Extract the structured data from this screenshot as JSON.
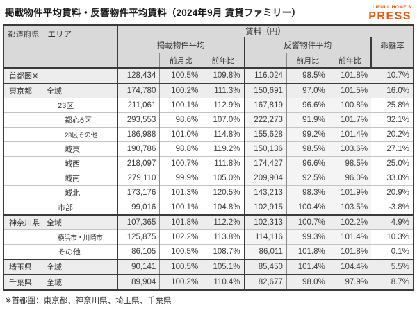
{
  "page": {
    "title": "掲載物件平均賃料・反響物件平均賃料（2024年9月 賃貸ファミリー）",
    "footnote": "※首都圏：東京都、神奈川県、埼玉県、千葉県"
  },
  "logo": {
    "brand": "LIFULL HOME'S",
    "name": "PRESS",
    "color": "#E8590C"
  },
  "table": {
    "header": {
      "area_label": "都道府県　エリア",
      "rent_label": "賃料（円）",
      "listed_avg": "掲載物件平均",
      "response_avg": "反響物件平均",
      "deviation": "乖離率",
      "mom": "前月比",
      "yoy": "前年比"
    },
    "rows": [
      {
        "pref": "首都圏※",
        "area": "",
        "indent": 0,
        "summary": true,
        "group_start": true,
        "values": [
          "128,434",
          "100.5%",
          "109.8%",
          "116,024",
          "98.5%",
          "101.8%",
          "10.7%"
        ]
      },
      {
        "pref": "東京都",
        "area": "全域",
        "indent": 1,
        "summary": true,
        "group_start": true,
        "values": [
          "174,780",
          "100.2%",
          "111.3%",
          "150,691",
          "97.0%",
          "101.5%",
          "16.0%"
        ]
      },
      {
        "pref": "",
        "area": "23区",
        "indent": 2,
        "values": [
          "211,061",
          "100.1%",
          "112.9%",
          "167,819",
          "96.6%",
          "100.8%",
          "25.8%"
        ]
      },
      {
        "pref": "",
        "area": "都心6区",
        "indent": 3,
        "values": [
          "293,553",
          "98.6%",
          "107.0%",
          "222,273",
          "91.9%",
          "101.7%",
          "32.1%"
        ]
      },
      {
        "pref": "",
        "area": "23区その他",
        "indent": 3,
        "small": true,
        "values": [
          "186,988",
          "101.0%",
          "114.8%",
          "155,628",
          "99.2%",
          "101.4%",
          "20.2%"
        ]
      },
      {
        "pref": "",
        "area": "城東",
        "indent": 3,
        "values": [
          "190,786",
          "98.8%",
          "119.2%",
          "150,136",
          "98.5%",
          "103.6%",
          "27.1%"
        ]
      },
      {
        "pref": "",
        "area": "城西",
        "indent": 3,
        "values": [
          "218,097",
          "100.7%",
          "111.8%",
          "174,427",
          "96.6%",
          "98.5%",
          "25.0%"
        ]
      },
      {
        "pref": "",
        "area": "城南",
        "indent": 3,
        "values": [
          "279,110",
          "99.9%",
          "105.0%",
          "209,904",
          "92.5%",
          "96.0%",
          "33.0%"
        ]
      },
      {
        "pref": "",
        "area": "城北",
        "indent": 3,
        "values": [
          "173,176",
          "101.3%",
          "120.5%",
          "143,213",
          "98.3%",
          "101.9%",
          "20.9%"
        ]
      },
      {
        "pref": "",
        "area": "市部",
        "indent": 2,
        "values": [
          "99,016",
          "100.1%",
          "104.8%",
          "102,915",
          "100.4%",
          "103.5%",
          "-3.8%"
        ]
      },
      {
        "pref": "神奈川県",
        "area": "全域",
        "indent": 1,
        "summary": true,
        "group_start": true,
        "values": [
          "107,365",
          "101.8%",
          "112.2%",
          "102,313",
          "100.7%",
          "102.2%",
          "4.9%"
        ]
      },
      {
        "pref": "",
        "area": "横浜市・川崎市",
        "indent": 2,
        "small": true,
        "values": [
          "125,875",
          "102.2%",
          "113.8%",
          "114,116",
          "99.3%",
          "101.4%",
          "10.3%"
        ]
      },
      {
        "pref": "",
        "area": "その他",
        "indent": 2,
        "values": [
          "86,105",
          "100.5%",
          "108.7%",
          "86,011",
          "101.8%",
          "101.8%",
          "0.1%"
        ]
      },
      {
        "pref": "埼玉県",
        "area": "全域",
        "indent": 1,
        "summary": true,
        "group_start": true,
        "values": [
          "90,141",
          "100.5%",
          "105.1%",
          "85,450",
          "101.4%",
          "104.4%",
          "5.5%"
        ]
      },
      {
        "pref": "千葉県",
        "area": "全域",
        "indent": 1,
        "summary": true,
        "group_start": true,
        "values": [
          "89,904",
          "100.2%",
          "110.4%",
          "82,677",
          "98.0%",
          "97.9%",
          "8.7%"
        ]
      }
    ]
  },
  "chart_data": {
    "type": "table",
    "title": "掲載物件平均賃料・反響物件平均賃料（2024年9月 賃貸ファミリー）",
    "columns": [
      "都道府県・エリア",
      "掲載物件平均 賃料(円)",
      "掲載 前月比",
      "掲載 前年比",
      "反響物件平均 賃料(円)",
      "反響 前月比",
      "反響 前年比",
      "乖離率"
    ],
    "rows": [
      [
        "首都圏※",
        128434,
        "100.5%",
        "109.8%",
        116024,
        "98.5%",
        "101.8%",
        "10.7%"
      ],
      [
        "東京都 全域",
        174780,
        "100.2%",
        "111.3%",
        150691,
        "97.0%",
        "101.5%",
        "16.0%"
      ],
      [
        "東京都 23区",
        211061,
        "100.1%",
        "112.9%",
        167819,
        "96.6%",
        "100.8%",
        "25.8%"
      ],
      [
        "東京都 都心6区",
        293553,
        "98.6%",
        "107.0%",
        222273,
        "91.9%",
        "101.7%",
        "32.1%"
      ],
      [
        "東京都 23区その他",
        186988,
        "101.0%",
        "114.8%",
        155628,
        "99.2%",
        "101.4%",
        "20.2%"
      ],
      [
        "東京都 城東",
        190786,
        "98.8%",
        "119.2%",
        150136,
        "98.5%",
        "103.6%",
        "27.1%"
      ],
      [
        "東京都 城西",
        218097,
        "100.7%",
        "111.8%",
        174427,
        "96.6%",
        "98.5%",
        "25.0%"
      ],
      [
        "東京都 城南",
        279110,
        "99.9%",
        "105.0%",
        209904,
        "92.5%",
        "96.0%",
        "33.0%"
      ],
      [
        "東京都 城北",
        173176,
        "101.3%",
        "120.5%",
        143213,
        "98.3%",
        "101.9%",
        "20.9%"
      ],
      [
        "東京都 市部",
        99016,
        "100.1%",
        "104.8%",
        102915,
        "100.4%",
        "103.5%",
        "-3.8%"
      ],
      [
        "神奈川県 全域",
        107365,
        "101.8%",
        "112.2%",
        102313,
        "100.7%",
        "102.2%",
        "4.9%"
      ],
      [
        "神奈川県 横浜市・川崎市",
        125875,
        "102.2%",
        "113.8%",
        114116,
        "99.3%",
        "101.4%",
        "10.3%"
      ],
      [
        "神奈川県 その他",
        86105,
        "100.5%",
        "108.7%",
        86011,
        "101.8%",
        "101.8%",
        "0.1%"
      ],
      [
        "埼玉県 全域",
        90141,
        "100.5%",
        "105.1%",
        85450,
        "101.4%",
        "104.4%",
        "5.5%"
      ],
      [
        "千葉県 全域",
        89904,
        "100.2%",
        "110.4%",
        82677,
        "98.0%",
        "97.9%",
        "8.7%"
      ]
    ]
  }
}
